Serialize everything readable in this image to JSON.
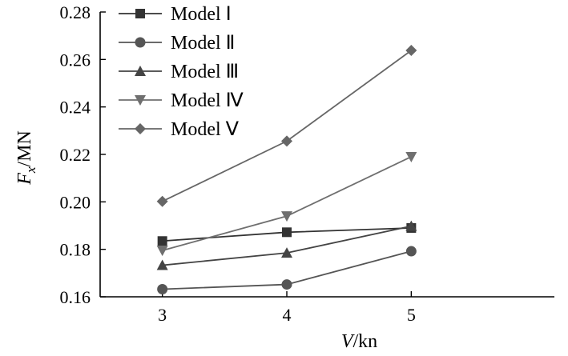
{
  "chart_data": {
    "type": "line",
    "x": [
      3,
      4,
      5
    ],
    "xlim": [
      2.5,
      6.15
    ],
    "ylim": [
      0.16,
      0.28
    ],
    "xticks": [
      3,
      4,
      5
    ],
    "xtick_labels": [
      "3",
      "4",
      "5"
    ],
    "yticks": [
      0.16,
      0.18,
      0.2,
      0.22,
      0.24,
      0.26,
      0.28
    ],
    "ytick_labels": [
      "0.16",
      "0.18",
      "0.20",
      "0.22",
      "0.24",
      "0.26",
      "0.28"
    ],
    "xlabel": {
      "italic": "V",
      "rest": "/kn"
    },
    "ylabel": {
      "italic": "F",
      "sub": "x",
      "rest": "/MN"
    },
    "grid": false,
    "legend_position": "top-left",
    "series": [
      {
        "name": "Model Ⅰ",
        "marker": "square",
        "color": "#333333",
        "values": [
          0.1835,
          0.1872,
          0.189
        ]
      },
      {
        "name": "Model Ⅱ",
        "marker": "circle",
        "color": "#555555",
        "values": [
          0.1632,
          0.1652,
          0.1792
        ]
      },
      {
        "name": "Model Ⅲ",
        "marker": "triangle-up",
        "color": "#444444",
        "values": [
          0.1733,
          0.1785,
          0.1898
        ]
      },
      {
        "name": "Model Ⅳ",
        "marker": "triangle-down",
        "color": "#6f6f6f",
        "values": [
          0.1795,
          0.194,
          0.219
        ]
      },
      {
        "name": "Model Ⅴ",
        "marker": "diamond",
        "color": "#666666",
        "values": [
          0.2002,
          0.2256,
          0.2638
        ]
      }
    ]
  }
}
